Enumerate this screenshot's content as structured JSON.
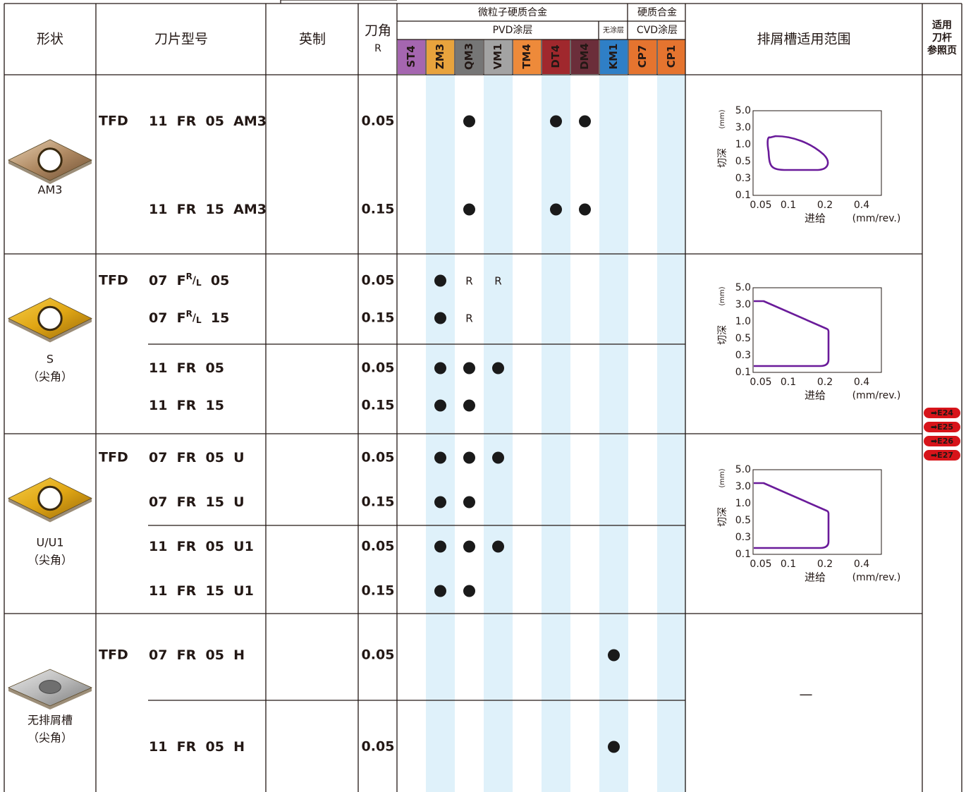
{
  "header": {
    "shape": "形状",
    "model": "刀片型号",
    "imperial": "英制",
    "radius_line1": "刀角",
    "radius_line2": "R",
    "micrograin": "微粒子硬质合金",
    "pvd_coating": "PVD涂层",
    "uncoated": "无涂层",
    "carbide": "硬质合金",
    "cvd_coating": "CVD涂层",
    "chipbreaker_range": "排屑槽适用范围",
    "holder_ref": [
      "适用",
      "刀杆",
      "参照页"
    ]
  },
  "grades": [
    {
      "code": "ST4",
      "color": "#a566b0",
      "stripe": false
    },
    {
      "code": "ZM3",
      "color": "#e8a33d",
      "stripe": true
    },
    {
      "code": "QM3",
      "color": "#767676",
      "stripe": false
    },
    {
      "code": "VM1",
      "color": "#a3a3a3",
      "stripe": true
    },
    {
      "code": "TM4",
      "color": "#ee8a3a",
      "stripe": false
    },
    {
      "code": "DT4",
      "color": "#a0282d",
      "stripe": true
    },
    {
      "code": "DM4",
      "color": "#6b2e3a",
      "stripe": false
    },
    {
      "code": "KM1",
      "color": "#2f7fc6",
      "stripe": true
    },
    {
      "code": "CP7",
      "color": "#e5742f",
      "stripe": false
    },
    {
      "code": "CP1",
      "color": "#e5742f",
      "stripe": true
    }
  ],
  "colors": {
    "stripe": "#dff1fa",
    "envelope": "#6a1b9a",
    "badge": "#d7141a",
    "border": "#231815"
  },
  "groups": [
    {
      "shape_name": "AM3",
      "shape_sub": "",
      "insert_icon": "bronze-insert-icon",
      "rows": [
        {
          "prefix": "TFD",
          "code": "11  FR  05  AM3",
          "radius": "0.05",
          "marks": [
            "",
            "",
            "●",
            "",
            "",
            "●",
            "●",
            "",
            "",
            ""
          ]
        },
        {
          "prefix": "",
          "code": "11  FR  15  AM3",
          "radius": "0.15",
          "marks": [
            "",
            "",
            "●",
            "",
            "",
            "●",
            "●",
            "",
            "",
            ""
          ]
        }
      ],
      "chart": "am3"
    },
    {
      "shape_name": "S",
      "shape_sub": "（尖角）",
      "insert_icon": "gold-insert-icon",
      "rows": [
        {
          "prefix": "TFD",
          "code": "07  F",
          "sup": "R",
          "slash": "/",
          "sub": "L",
          "tail": "  05",
          "radius": "0.05",
          "marks": [
            "",
            "●",
            "R",
            "R",
            "",
            "",
            "",
            "",
            "",
            ""
          ]
        },
        {
          "prefix": "",
          "code": "07  F",
          "sup": "R",
          "slash": "/",
          "sub": "L",
          "tail": "  15",
          "radius": "0.15",
          "marks": [
            "",
            "●",
            "R",
            "",
            "",
            "",
            "",
            "",
            "",
            ""
          ]
        },
        {
          "prefix": "",
          "code": "11  FR  05",
          "radius": "0.05",
          "marks": [
            "",
            "●",
            "●",
            "●",
            "",
            "",
            "",
            "",
            "",
            ""
          ]
        },
        {
          "prefix": "",
          "code": "11  FR  15",
          "radius": "0.15",
          "marks": [
            "",
            "●",
            "●",
            "",
            "",
            "",
            "",
            "",
            "",
            ""
          ]
        }
      ],
      "chart": "general"
    },
    {
      "shape_name": "U/U1",
      "shape_sub": "（尖角）",
      "insert_icon": "gold-insert-icon",
      "rows": [
        {
          "prefix": "TFD",
          "code": "07  FR  05  U",
          "radius": "0.05",
          "marks": [
            "",
            "●",
            "●",
            "●",
            "",
            "",
            "",
            "",
            "",
            ""
          ]
        },
        {
          "prefix": "",
          "code": "07  FR  15  U",
          "radius": "0.15",
          "marks": [
            "",
            "●",
            "●",
            "",
            "",
            "",
            "",
            "",
            "",
            ""
          ]
        },
        {
          "prefix": "",
          "code": "11  FR  05  U1",
          "radius": "0.05",
          "marks": [
            "",
            "●",
            "●",
            "●",
            "",
            "",
            "",
            "",
            "",
            ""
          ]
        },
        {
          "prefix": "",
          "code": "11  FR  15  U1",
          "radius": "0.15",
          "marks": [
            "",
            "●",
            "●",
            "",
            "",
            "",
            "",
            "",
            "",
            ""
          ]
        }
      ],
      "chart": "general"
    },
    {
      "shape_name": "无排屑槽",
      "shape_sub": "（尖角）",
      "insert_icon": "silver-insert-icon",
      "rows": [
        {
          "prefix": "TFD",
          "code": "07  FR  05  H",
          "radius": "0.05",
          "marks": [
            "",
            "",
            "",
            "",
            "",
            "",
            "",
            "●",
            "",
            ""
          ]
        },
        {
          "prefix": "",
          "code": "11  FR  05  H",
          "radius": "0.05",
          "marks": [
            "",
            "",
            "",
            "",
            "",
            "",
            "",
            "●",
            "",
            ""
          ]
        }
      ],
      "chart": "none",
      "chart_placeholder": "—"
    }
  ],
  "range_chart": {
    "y_label": "切深",
    "y_unit": "(mm)",
    "x_label": "进给",
    "x_unit": "(mm/rev.)",
    "y_ticks": [
      "5.0",
      "3.0",
      "1.0",
      "0.5",
      "0.3",
      "0.1"
    ],
    "x_ticks": [
      "0.05",
      "0.1",
      "0.2",
      "0.4"
    ]
  },
  "ref_pages": [
    "➡E24",
    "➡E25",
    "➡E26",
    "➡E27"
  ]
}
